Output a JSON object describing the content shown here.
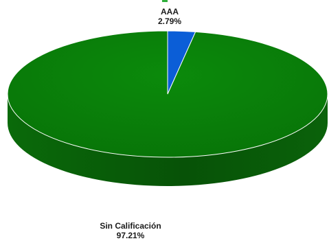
{
  "chart_data": {
    "type": "pie",
    "title": "",
    "three_d": true,
    "slices": [
      {
        "label": "AAA",
        "value": 2.79,
        "value_label": "2.79%",
        "color": "#0b5ed7"
      },
      {
        "label": "Sin Calificación",
        "value": 97.21,
        "value_label": "97.21%",
        "color": "#0a7a0a"
      }
    ],
    "legend": "none",
    "colors": {
      "aaa_side": "#073e96",
      "sin_side": "#064f06",
      "separator": "#ffffff"
    }
  }
}
